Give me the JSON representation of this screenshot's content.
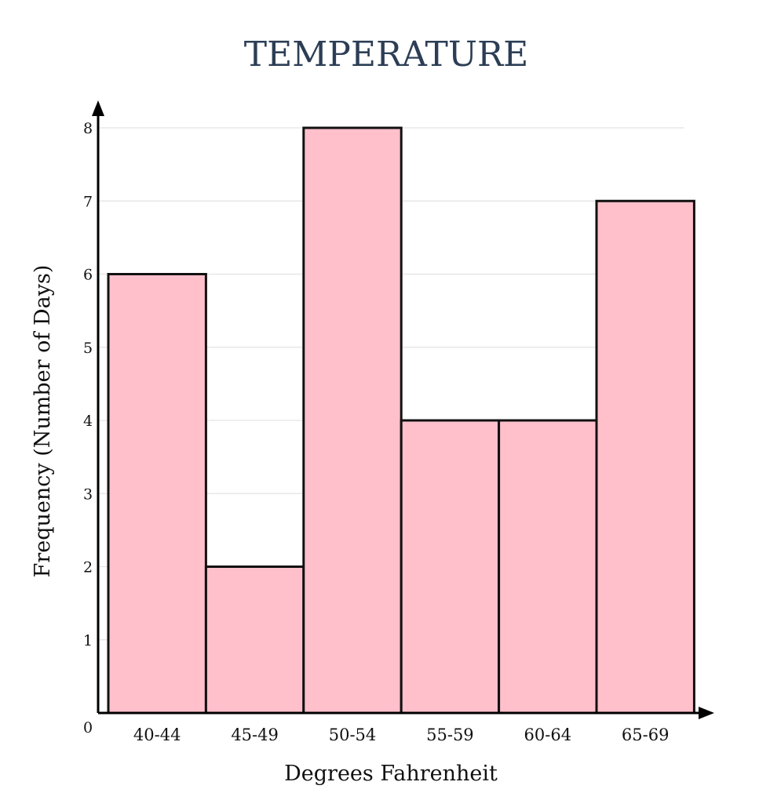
{
  "chart_data": {
    "type": "bar",
    "title": "TEMPERATURE",
    "xlabel": "Degrees Fahrenheit",
    "ylabel": "Frequency (Number of Days)",
    "categories": [
      "40-44",
      "45-49",
      "50-54",
      "55-59",
      "60-64",
      "65-69"
    ],
    "values": [
      6,
      2,
      8,
      4,
      4,
      7
    ],
    "ylim": [
      0,
      8
    ],
    "yticks": [
      "0",
      "1",
      "2",
      "3",
      "4",
      "5",
      "6",
      "7",
      "8"
    ],
    "grid": true,
    "colors": {
      "bar_fill": "#ffc0cb",
      "bar_stroke": "#111111",
      "title": "#2c3e55",
      "grid": "#e3e3e3",
      "axis": "#000000"
    }
  }
}
